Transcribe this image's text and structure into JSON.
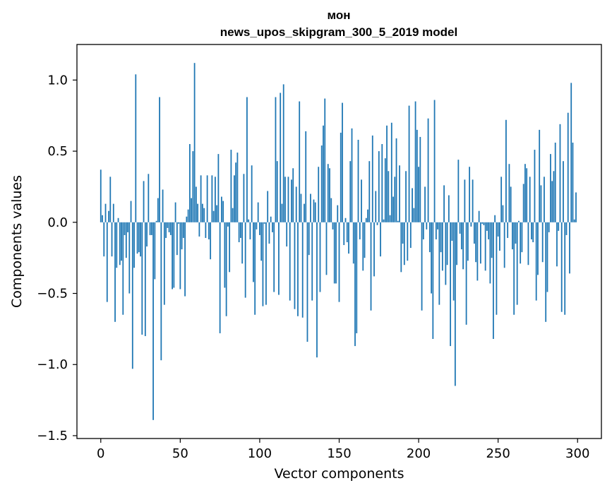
{
  "chart_data": {
    "type": "bar",
    "title": "мон\nnews_upos_skipgram_300_5_2019 model",
    "title_lines": [
      "мон",
      "news_upos_skipgram_300_5_2019 model"
    ],
    "xlabel": "Vector components",
    "ylabel": "Components values",
    "xlim": [
      -15,
      315
    ],
    "ylim": [
      -1.52,
      1.25
    ],
    "xticks": [
      0,
      50,
      100,
      150,
      200,
      250,
      300
    ],
    "yticks": [
      -1.5,
      -1.0,
      -0.5,
      0.0,
      0.5,
      1.0
    ],
    "ytick_labels": [
      "−1.5",
      "−1.0",
      "−0.5",
      "0.0",
      "0.5",
      "1.0"
    ],
    "grid": false,
    "bar_color": "#1f77b4",
    "bar_width": 0.8,
    "values": [
      0.37,
      0.05,
      -0.24,
      0.13,
      -0.56,
      0.08,
      0.32,
      -0.24,
      0.13,
      -0.7,
      -0.32,
      0.03,
      -0.3,
      -0.27,
      -0.65,
      -0.09,
      -0.25,
      -0.07,
      -0.5,
      0.15,
      -1.03,
      -0.32,
      1.04,
      -0.22,
      -0.21,
      -0.24,
      -0.79,
      0.29,
      -0.8,
      -0.17,
      0.34,
      -0.09,
      -0.09,
      -1.39,
      -0.4,
      0.01,
      0.17,
      0.88,
      -0.97,
      0.23,
      -0.58,
      -0.11,
      -0.04,
      -0.07,
      -0.09,
      -0.47,
      -0.46,
      0.14,
      -0.23,
      -0.01,
      -0.47,
      -0.19,
      -0.11,
      -0.52,
      0.04,
      0.09,
      0.55,
      0.17,
      0.5,
      1.12,
      0.25,
      0.13,
      -0.1,
      0.33,
      0.13,
      0.1,
      -0.11,
      0.33,
      -0.12,
      -0.26,
      0.33,
      0.08,
      0.32,
      0.12,
      0.48,
      -0.78,
      0.18,
      0.15,
      -0.46,
      -0.66,
      -0.03,
      -0.35,
      0.51,
      0.1,
      0.33,
      0.42,
      0.49,
      -0.14,
      -0.11,
      -0.29,
      0.34,
      -0.53,
      0.88,
      0.02,
      -0.12,
      0.4,
      -0.42,
      -0.65,
      -0.05,
      0.14,
      -0.09,
      -0.27,
      -0.59,
      -0.01,
      -0.58,
      0.22,
      -0.15,
      0.04,
      -0.07,
      -0.49,
      0.88,
      0.43,
      -0.51,
      0.91,
      0.13,
      0.97,
      0.32,
      -0.17,
      0.32,
      -0.55,
      0.3,
      0.38,
      -0.61,
      0.25,
      -0.66,
      0.85,
      0.2,
      -0.67,
      0.13,
      0.64,
      -0.84,
      -0.23,
      0.2,
      -0.55,
      0.16,
      0.14,
      -0.95,
      0.39,
      -0.49,
      0.54,
      0.68,
      0.87,
      -0.37,
      0.41,
      0.38,
      0.17,
      -0.05,
      -0.43,
      -0.43,
      0.12,
      -0.56,
      0.63,
      0.84,
      -0.16,
      0.03,
      -0.14,
      -0.22,
      0.43,
      0.66,
      -0.29,
      -0.87,
      -0.78,
      0.58,
      -0.12,
      0.3,
      -0.34,
      -0.25,
      0.03,
      0.09,
      0.43,
      -0.62,
      0.61,
      -0.38,
      0.22,
      -0.02,
      0.5,
      -0.24,
      0.55,
      0.02,
      0.45,
      0.68,
      0.36,
      0.05,
      0.7,
      0.18,
      0.32,
      0.59,
      0.01,
      0.4,
      -0.35,
      -0.15,
      -0.3,
      0.36,
      -0.27,
      0.82,
      -0.18,
      0.24,
      0.1,
      0.85,
      0.65,
      0.39,
      0.6,
      -0.62,
      -0.12,
      0.25,
      -0.05,
      0.73,
      -0.21,
      -0.5,
      -0.82,
      0.86,
      -0.12,
      -0.05,
      -0.58,
      -0.21,
      -0.34,
      0.26,
      -0.44,
      -0.3,
      0.19,
      -0.87,
      -0.13,
      -0.55,
      -1.15,
      -0.3,
      0.44,
      -0.08,
      -0.19,
      -0.33,
      0.3,
      -0.72,
      -0.27,
      0.39,
      -0.03,
      0.3,
      -0.15,
      -0.28,
      -0.41,
      0.08,
      -0.29,
      -0.01,
      -0.02,
      -0.34,
      -0.06,
      -0.12,
      -0.43,
      -0.25,
      -0.82,
      0.05,
      -0.65,
      -0.1,
      -0.2,
      0.32,
      0.12,
      -0.32,
      0.72,
      -0.11,
      0.41,
      0.25,
      -0.19,
      -0.65,
      -0.15,
      -0.58,
      0.01,
      -0.29,
      -0.21,
      0.27,
      0.41,
      0.38,
      -0.3,
      0.32,
      -0.12,
      -0.14,
      0.51,
      -0.55,
      -0.37,
      0.65,
      0.26,
      -0.28,
      0.32,
      -0.7,
      -0.49,
      -0.07,
      0.48,
      0.29,
      0.36,
      0.56,
      -0.31,
      -0.06,
      0.69,
      -0.63,
      0.43,
      -0.65,
      -0.09,
      0.77,
      -0.36,
      0.98,
      0.56,
      0.02,
      0.21
    ]
  }
}
